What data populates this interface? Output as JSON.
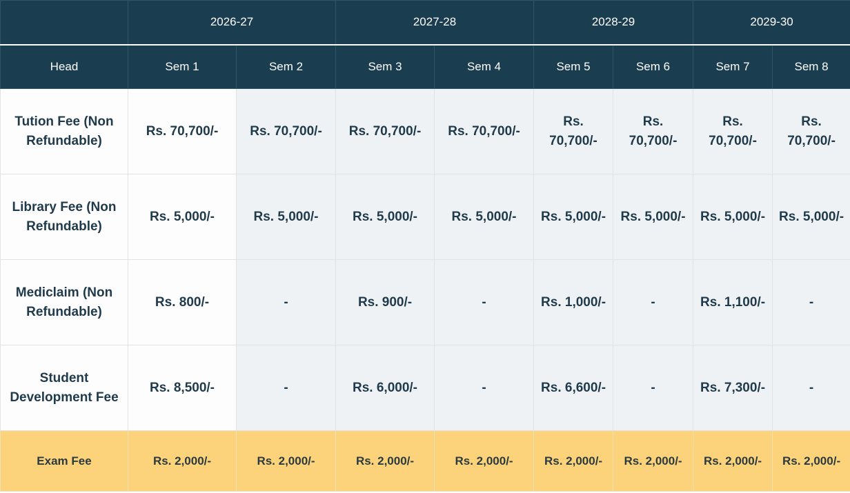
{
  "years": [
    "2026-27",
    "2027-28",
    "2028-29",
    "2029-30"
  ],
  "head_label": "Head",
  "semesters": [
    "Sem 1",
    "Sem 2",
    "Sem 3",
    "Sem 4",
    "Sem 5",
    "Sem 6",
    "Sem 7",
    "Sem 8"
  ],
  "rows": [
    {
      "head": "Tution Fee (Non Refundable)",
      "values": [
        "Rs. 70,700/-",
        "Rs. 70,700/-",
        "Rs. 70,700/-",
        "Rs. 70,700/-",
        "Rs. 70,700/-",
        "Rs. 70,700/-",
        "Rs. 70,700/-",
        "Rs. 70,700/-"
      ]
    },
    {
      "head": "Library Fee (Non Refundable)",
      "values": [
        "Rs. 5,000/-",
        "Rs. 5,000/-",
        "Rs. 5,000/-",
        "Rs. 5,000/-",
        "Rs. 5,000/-",
        "Rs. 5,000/-",
        "Rs. 5,000/-",
        "Rs. 5,000/-"
      ]
    },
    {
      "head": "Mediclaim (Non Refundable)",
      "values": [
        "Rs. 800/-",
        "-",
        "Rs. 900/-",
        "-",
        "Rs. 1,000/-",
        "-",
        "Rs. 1,100/-",
        "-"
      ]
    },
    {
      "head": "Student Development Fee",
      "values": [
        "Rs. 8,500/-",
        "-",
        "Rs. 6,000/-",
        "-",
        "Rs. 6,600/-",
        "-",
        "Rs. 7,300/-",
        "-"
      ]
    },
    {
      "head": "Exam Fee",
      "values": [
        "Rs. 2,000/-",
        "Rs. 2,000/-",
        "Rs. 2,000/-",
        "Rs. 2,000/-",
        "Rs. 2,000/-",
        "Rs. 2,000/-",
        "Rs. 2,000/-",
        "Rs. 2,000/-"
      ]
    }
  ]
}
